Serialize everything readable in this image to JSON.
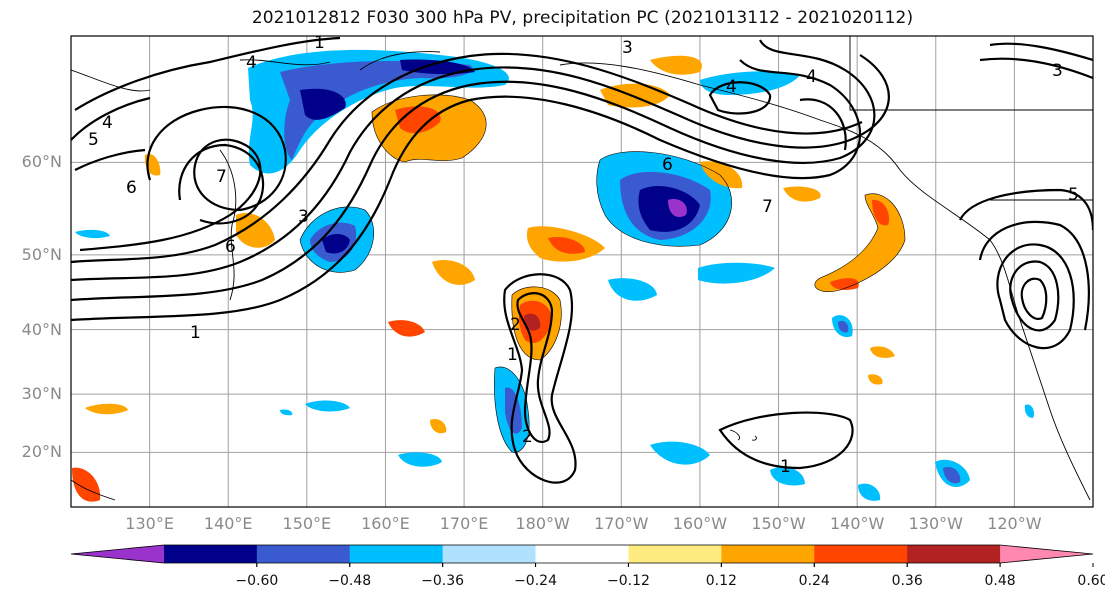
{
  "title": "2021012812 F030 300 hPa PV, precipitation PC (2021013112 - 2021020112)",
  "latitudes": [
    {
      "label": "60°N",
      "value": 60
    },
    {
      "label": "50°N",
      "value": 50
    },
    {
      "label": "40°N",
      "value": 40
    },
    {
      "label": "30°N",
      "value": 30
    },
    {
      "label": "20°N",
      "value": 20
    }
  ],
  "longitudes": [
    {
      "label": "130°E",
      "value": 130
    },
    {
      "label": "140°E",
      "value": 140
    },
    {
      "label": "150°E",
      "value": 150
    },
    {
      "label": "160°E",
      "value": 160
    },
    {
      "label": "170°E",
      "value": 170
    },
    {
      "label": "180°W",
      "value": 180
    },
    {
      "label": "170°W",
      "value": 190
    },
    {
      "label": "160°W",
      "value": 200
    },
    {
      "label": "150°W",
      "value": 210
    },
    {
      "label": "140°W",
      "value": 220
    },
    {
      "label": "130°W",
      "value": 230
    },
    {
      "label": "120°W",
      "value": 240
    }
  ],
  "map_extent": {
    "lon_min": 120,
    "lon_max": 250,
    "lat_min": 10,
    "lat_max": 70
  },
  "colorbar": {
    "colors": [
      "#9933cc",
      "#00008b",
      "#3a5bd0",
      "#00bfff",
      "#b0e2ff",
      "#ffffff",
      "#ffec80",
      "#ffa500",
      "#ff4500",
      "#b22222",
      "#ff88b0"
    ],
    "tick_labels": [
      "−0.60",
      "−0.48",
      "−0.36",
      "−0.24",
      "−0.12",
      "0.12",
      "0.24",
      "0.36",
      "0.48",
      "0.60"
    ],
    "tick_values": [
      -0.6,
      -0.48,
      -0.36,
      -0.24,
      -0.12,
      0.12,
      0.24,
      0.36,
      0.48,
      0.6
    ]
  },
  "pv_contour_labels": [
    "1",
    "2",
    "3",
    "4",
    "5",
    "6",
    "7"
  ],
  "shading_colors": {
    "strong_neg": "#00008b",
    "neg": "#3a5bd0",
    "weak_neg": "#00bfff",
    "very_weak_neg": "#b0e2ff",
    "very_weak_pos": "#ffec80",
    "weak_pos": "#ffa500",
    "pos": "#ff4500",
    "strong_pos": "#b22222",
    "extreme_neg": "#9933cc"
  }
}
